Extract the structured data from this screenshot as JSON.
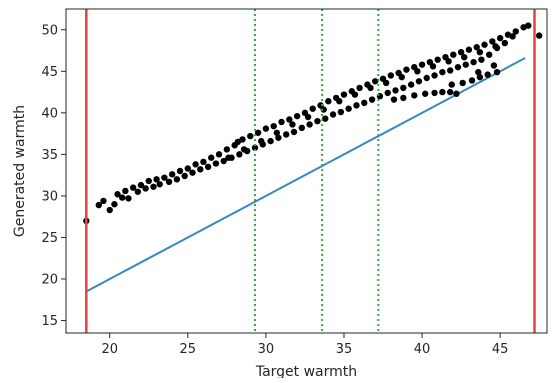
{
  "chart_data": {
    "type": "scatter",
    "title": "",
    "xlabel": "Target warmth",
    "ylabel": "Generated warmth",
    "xlim": [
      17.2,
      48.0
    ],
    "ylim": [
      13.5,
      52.5
    ],
    "x_ticks": [
      20,
      25,
      30,
      35,
      40,
      45
    ],
    "y_ticks": [
      15,
      20,
      25,
      30,
      35,
      40,
      45,
      50
    ],
    "x_tick_labels": [
      "20",
      "25",
      "30",
      "35",
      "40",
      "45"
    ],
    "y_tick_labels": [
      "15",
      "20",
      "25",
      "30",
      "35",
      "40",
      "45",
      "50"
    ],
    "grid": false,
    "legend": "none",
    "series": [
      {
        "kind": "scatter",
        "color": "#000000",
        "points": [
          [
            18.5,
            27.0
          ],
          [
            19.3,
            28.9
          ],
          [
            19.6,
            29.4
          ],
          [
            20.0,
            28.3
          ],
          [
            20.3,
            29.0
          ],
          [
            20.5,
            30.2
          ],
          [
            20.8,
            29.8
          ],
          [
            21.0,
            30.6
          ],
          [
            21.2,
            29.7
          ],
          [
            21.5,
            31.0
          ],
          [
            21.8,
            30.5
          ],
          [
            22.0,
            31.3
          ],
          [
            22.3,
            30.9
          ],
          [
            22.5,
            31.8
          ],
          [
            22.8,
            31.1
          ],
          [
            23.0,
            32.0
          ],
          [
            23.2,
            31.4
          ],
          [
            23.5,
            32.2
          ],
          [
            23.8,
            31.7
          ],
          [
            24.0,
            32.6
          ],
          [
            24.3,
            32.0
          ],
          [
            24.5,
            33.0
          ],
          [
            24.8,
            32.4
          ],
          [
            25.0,
            33.3
          ],
          [
            25.3,
            32.8
          ],
          [
            25.5,
            33.8
          ],
          [
            25.8,
            33.2
          ],
          [
            26.0,
            34.1
          ],
          [
            26.3,
            33.5
          ],
          [
            26.5,
            34.6
          ],
          [
            26.8,
            33.9
          ],
          [
            27.0,
            35.0
          ],
          [
            27.3,
            34.2
          ],
          [
            27.5,
            35.6
          ],
          [
            27.8,
            34.6
          ],
          [
            28.0,
            36.1
          ],
          [
            28.2,
            36.5
          ],
          [
            28.3,
            35.0
          ],
          [
            28.5,
            36.8
          ],
          [
            28.8,
            35.4
          ],
          [
            29.0,
            37.2
          ],
          [
            29.3,
            35.8
          ],
          [
            29.5,
            37.6
          ],
          [
            29.8,
            36.2
          ],
          [
            30.0,
            38.1
          ],
          [
            30.3,
            36.6
          ],
          [
            30.5,
            38.4
          ],
          [
            30.8,
            37.0
          ],
          [
            31.0,
            38.9
          ],
          [
            31.3,
            37.4
          ],
          [
            31.5,
            39.2
          ],
          [
            31.8,
            37.7
          ],
          [
            32.0,
            39.6
          ],
          [
            32.3,
            38.2
          ],
          [
            32.5,
            40.0
          ],
          [
            32.8,
            38.6
          ],
          [
            33.0,
            40.5
          ],
          [
            33.3,
            39.0
          ],
          [
            33.5,
            40.9
          ],
          [
            33.8,
            39.3
          ],
          [
            34.0,
            41.4
          ],
          [
            34.3,
            39.8
          ],
          [
            34.5,
            41.8
          ],
          [
            34.8,
            40.1
          ],
          [
            35.0,
            42.2
          ],
          [
            35.3,
            40.5
          ],
          [
            35.5,
            42.6
          ],
          [
            35.8,
            40.9
          ],
          [
            36.0,
            43.0
          ],
          [
            36.3,
            41.2
          ],
          [
            36.5,
            43.4
          ],
          [
            36.8,
            41.6
          ],
          [
            37.0,
            43.8
          ],
          [
            37.3,
            42.0
          ],
          [
            37.5,
            44.1
          ],
          [
            37.8,
            42.4
          ],
          [
            38.0,
            44.5
          ],
          [
            38.3,
            42.7
          ],
          [
            38.5,
            44.8
          ],
          [
            38.8,
            43.0
          ],
          [
            39.0,
            45.2
          ],
          [
            39.3,
            43.4
          ],
          [
            39.5,
            45.5
          ],
          [
            39.8,
            43.8
          ],
          [
            40.0,
            45.8
          ],
          [
            40.3,
            44.2
          ],
          [
            40.5,
            46.1
          ],
          [
            40.8,
            44.5
          ],
          [
            41.0,
            46.4
          ],
          [
            41.3,
            44.9
          ],
          [
            41.5,
            46.7
          ],
          [
            41.8,
            45.1
          ],
          [
            42.0,
            47.0
          ],
          [
            42.3,
            45.5
          ],
          [
            42.5,
            47.3
          ],
          [
            42.8,
            45.8
          ],
          [
            43.0,
            47.6
          ],
          [
            43.3,
            46.1
          ],
          [
            43.5,
            47.9
          ],
          [
            43.8,
            46.4
          ],
          [
            44.0,
            48.2
          ],
          [
            44.3,
            47.0
          ],
          [
            44.5,
            48.6
          ],
          [
            44.8,
            47.8
          ],
          [
            45.0,
            49.0
          ],
          [
            45.3,
            48.4
          ],
          [
            45.5,
            49.4
          ],
          [
            45.8,
            49.2
          ],
          [
            46.0,
            49.8
          ],
          [
            46.5,
            50.3
          ],
          [
            46.8,
            50.5
          ],
          [
            47.5,
            49.3
          ],
          [
            38.2,
            41.6
          ],
          [
            38.8,
            41.8
          ],
          [
            39.5,
            42.1
          ],
          [
            40.2,
            42.3
          ],
          [
            40.8,
            42.4
          ],
          [
            41.3,
            42.5
          ],
          [
            41.8,
            42.5
          ],
          [
            42.2,
            42.3
          ],
          [
            41.9,
            43.4
          ],
          [
            42.6,
            43.6
          ],
          [
            43.2,
            43.9
          ],
          [
            43.7,
            44.3
          ],
          [
            44.2,
            44.6
          ],
          [
            44.8,
            44.9
          ],
          [
            43.6,
            44.9
          ],
          [
            44.6,
            45.7
          ],
          [
            27.6,
            34.6
          ],
          [
            28.6,
            35.6
          ],
          [
            29.7,
            36.6
          ],
          [
            30.7,
            37.6
          ],
          [
            31.7,
            38.6
          ],
          [
            32.7,
            39.5
          ],
          [
            33.7,
            40.4
          ],
          [
            34.7,
            41.4
          ],
          [
            35.7,
            42.2
          ],
          [
            36.7,
            43.0
          ],
          [
            37.7,
            43.6
          ],
          [
            38.7,
            44.3
          ],
          [
            39.7,
            45.0
          ],
          [
            40.7,
            45.6
          ],
          [
            41.7,
            46.2
          ],
          [
            42.7,
            46.7
          ],
          [
            43.7,
            47.3
          ],
          [
            44.7,
            48.0
          ]
        ]
      },
      {
        "kind": "line",
        "color": "#3a87c0",
        "points": [
          [
            18.5,
            18.5
          ],
          [
            46.6,
            46.6
          ]
        ]
      }
    ],
    "vlines": [
      {
        "x": 18.5,
        "color": "#e8413c",
        "style": "solid"
      },
      {
        "x": 47.2,
        "color": "#e8413c",
        "style": "solid"
      },
      {
        "x": 29.3,
        "color": "#3ea33e",
        "style": "dotted"
      },
      {
        "x": 33.6,
        "color": "#3ea33e",
        "style": "dotted"
      },
      {
        "x": 37.2,
        "color": "#3ea33e",
        "style": "dotted"
      }
    ]
  }
}
